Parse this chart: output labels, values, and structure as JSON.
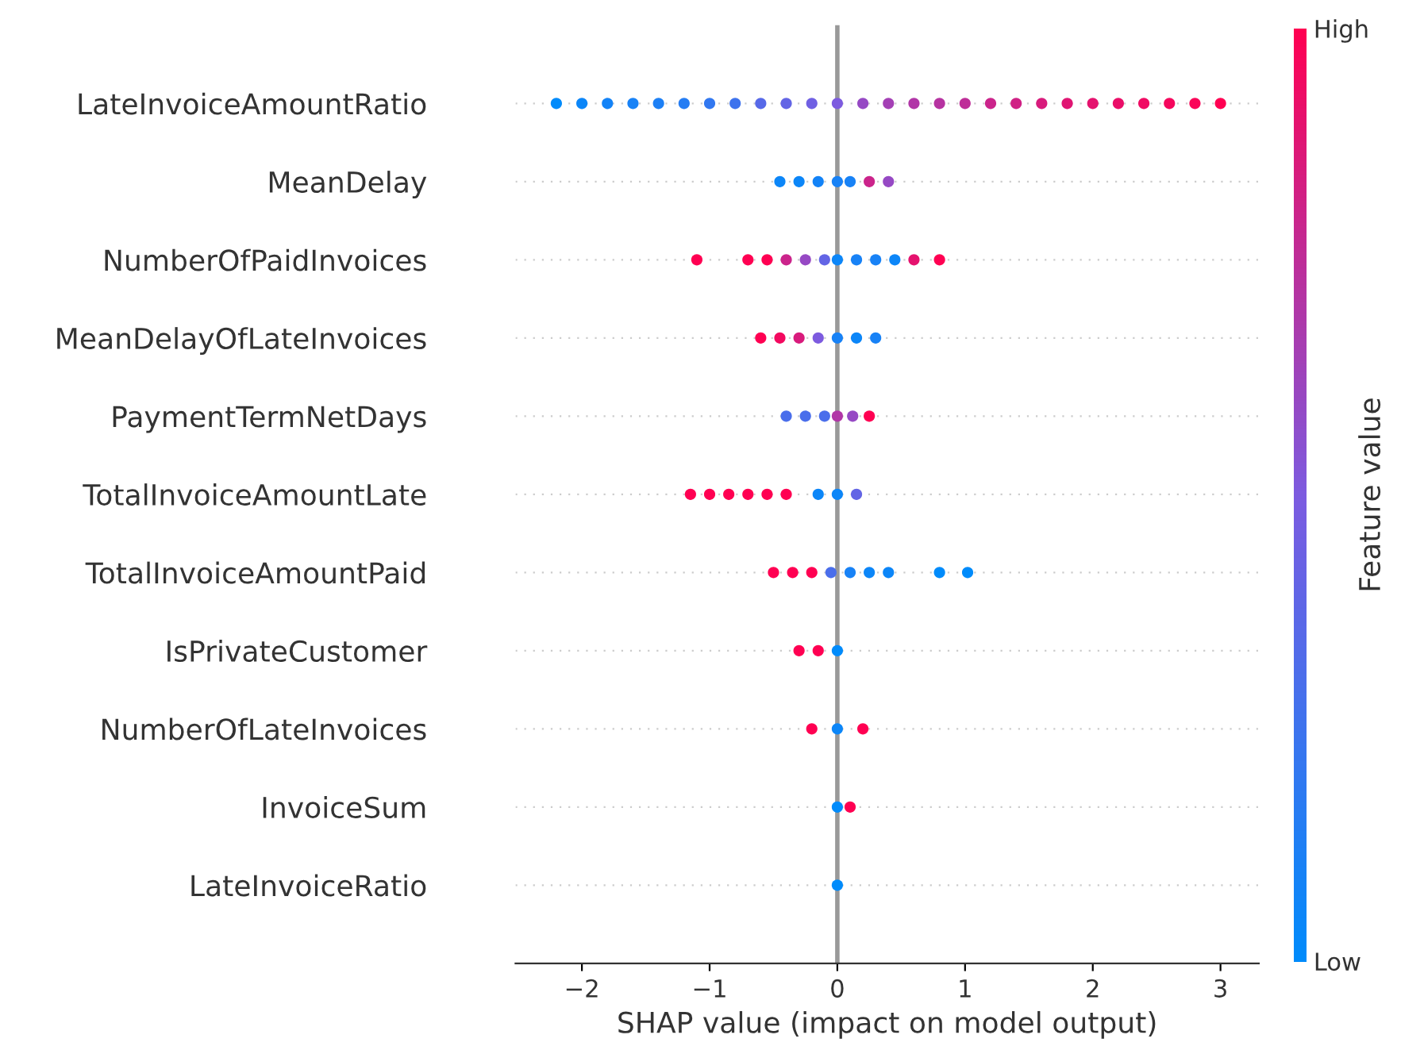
{
  "chart_data": {
    "type": "scatter",
    "orientation": "horizontal",
    "xlabel": "SHAP value (impact on model output)",
    "clabel": "Feature value",
    "categories": [
      "LateInvoiceAmountRatio",
      "MeanDelay",
      "NumberOfPaidInvoices",
      "MeanDelayOfLateInvoices",
      "PaymentTermNetDays",
      "TotalInvoiceAmountLate",
      "TotalInvoiceAmountPaid",
      "IsPrivateCustomer",
      "NumberOfLateInvoices",
      "InvoiceSum",
      "LateInvoiceRatio"
    ],
    "series": [
      {
        "x": [
          "LateInvoiceAmountRatio",
          "LateInvoiceAmountRatio",
          "LateInvoiceAmountRatio",
          "LateInvoiceAmountRatio",
          "LateInvoiceAmountRatio",
          "LateInvoiceAmountRatio",
          "LateInvoiceAmountRatio",
          "LateInvoiceAmountRatio",
          "LateInvoiceAmountRatio",
          "LateInvoiceAmountRatio",
          "LateInvoiceAmountRatio",
          "LateInvoiceAmountRatio",
          "LateInvoiceAmountRatio",
          "LateInvoiceAmountRatio",
          "LateInvoiceAmountRatio",
          "LateInvoiceAmountRatio",
          "LateInvoiceAmountRatio",
          "LateInvoiceAmountRatio",
          "LateInvoiceAmountRatio",
          "LateInvoiceAmountRatio",
          "LateInvoiceAmountRatio",
          "LateInvoiceAmountRatio",
          "LateInvoiceAmountRatio",
          "LateInvoiceAmountRatio",
          "LateInvoiceAmountRatio",
          "LateInvoiceAmountRatio",
          "LateInvoiceAmountRatio",
          "MeanDelay",
          "MeanDelay",
          "MeanDelay",
          "MeanDelay",
          "MeanDelay",
          "MeanDelay",
          "MeanDelay",
          "NumberOfPaidInvoices",
          "NumberOfPaidInvoices",
          "NumberOfPaidInvoices",
          "NumberOfPaidInvoices",
          "NumberOfPaidInvoices",
          "NumberOfPaidInvoices",
          "NumberOfPaidInvoices",
          "NumberOfPaidInvoices",
          "NumberOfPaidInvoices",
          "NumberOfPaidInvoices",
          "NumberOfPaidInvoices",
          "NumberOfPaidInvoices",
          "MeanDelayOfLateInvoices",
          "MeanDelayOfLateInvoices",
          "MeanDelayOfLateInvoices",
          "MeanDelayOfLateInvoices",
          "MeanDelayOfLateInvoices",
          "MeanDelayOfLateInvoices",
          "MeanDelayOfLateInvoices",
          "PaymentTermNetDays",
          "PaymentTermNetDays",
          "PaymentTermNetDays",
          "PaymentTermNetDays",
          "PaymentTermNetDays",
          "PaymentTermNetDays",
          "TotalInvoiceAmountLate",
          "TotalInvoiceAmountLate",
          "TotalInvoiceAmountLate",
          "TotalInvoiceAmountLate",
          "TotalInvoiceAmountLate",
          "TotalInvoiceAmountLate",
          "TotalInvoiceAmountLate",
          "TotalInvoiceAmountLate",
          "TotalInvoiceAmountLate",
          "TotalInvoiceAmountPaid",
          "TotalInvoiceAmountPaid",
          "TotalInvoiceAmountPaid",
          "TotalInvoiceAmountPaid",
          "TotalInvoiceAmountPaid",
          "TotalInvoiceAmountPaid",
          "TotalInvoiceAmountPaid",
          "TotalInvoiceAmountPaid",
          "TotalInvoiceAmountPaid",
          "IsPrivateCustomer",
          "IsPrivateCustomer",
          "IsPrivateCustomer",
          "NumberOfLateInvoices",
          "NumberOfLateInvoices",
          "NumberOfLateInvoices",
          "InvoiceSum",
          "InvoiceSum",
          "LateInvoiceRatio"
        ],
        "values": [
          -2.2,
          -2.0,
          -1.8,
          -1.6,
          -1.4,
          -1.2,
          -1.0,
          -0.8,
          -0.6,
          -0.4,
          -0.2,
          0.0,
          0.2,
          0.4,
          0.6,
          0.8,
          1.0,
          1.2,
          1.4,
          1.6,
          1.8,
          2.0,
          2.2,
          2.4,
          2.6,
          2.8,
          3.0,
          -0.45,
          -0.3,
          -0.15,
          0.0,
          0.1,
          0.25,
          0.4,
          -1.1,
          -0.7,
          -0.55,
          -0.4,
          -0.25,
          -0.1,
          0.0,
          0.15,
          0.3,
          0.45,
          0.6,
          0.8,
          -0.6,
          -0.45,
          -0.3,
          -0.15,
          0.0,
          0.15,
          0.3,
          -0.4,
          -0.25,
          -0.1,
          0.0,
          0.12,
          0.25,
          -1.15,
          -1.0,
          -0.85,
          -0.7,
          -0.55,
          -0.4,
          -0.15,
          0.0,
          0.15,
          -0.5,
          -0.35,
          -0.2,
          -0.05,
          0.1,
          0.25,
          0.4,
          0.8,
          1.02,
          -0.3,
          -0.15,
          0.0,
          -0.2,
          0.0,
          0.2,
          0.0,
          0.1,
          0.0
        ],
        "cvalues": [
          0.0,
          0.05,
          0.08,
          0.1,
          0.12,
          0.15,
          0.2,
          0.25,
          0.35,
          0.4,
          0.45,
          0.5,
          0.6,
          0.65,
          0.7,
          0.72,
          0.75,
          0.8,
          0.82,
          0.85,
          0.88,
          0.9,
          0.92,
          0.94,
          0.96,
          0.98,
          1.0,
          0.05,
          0.05,
          0.08,
          0.1,
          0.1,
          0.8,
          0.6,
          1.0,
          1.0,
          1.0,
          0.8,
          0.6,
          0.4,
          0.05,
          0.1,
          0.1,
          0.05,
          0.9,
          1.0,
          1.0,
          0.95,
          0.85,
          0.5,
          0.1,
          0.05,
          0.1,
          0.3,
          0.3,
          0.3,
          0.7,
          0.6,
          1.0,
          1.0,
          1.0,
          1.0,
          1.0,
          1.0,
          1.0,
          0.05,
          0.05,
          0.4,
          1.0,
          1.0,
          1.0,
          0.3,
          0.1,
          0.05,
          0.05,
          0.0,
          0.0,
          1.0,
          1.0,
          0.0,
          1.0,
          0.05,
          1.0,
          0.0,
          1.0,
          0.0
        ]
      }
    ],
    "xlim": [
      -2.52,
      3.3
    ],
    "xticks": [
      {
        "value": -2,
        "label": "−2"
      },
      {
        "value": -1,
        "label": "−1"
      },
      0,
      1,
      2,
      3
    ],
    "clim": [
      0,
      1
    ],
    "cticks": [
      {
        "value": 0,
        "label": "Low"
      },
      {
        "value": 1,
        "label": "High"
      }
    ],
    "ref_lines": [
      {
        "axis": "x",
        "value": 0,
        "color": "#999999"
      }
    ],
    "grid": "y",
    "marker": "circle"
  }
}
